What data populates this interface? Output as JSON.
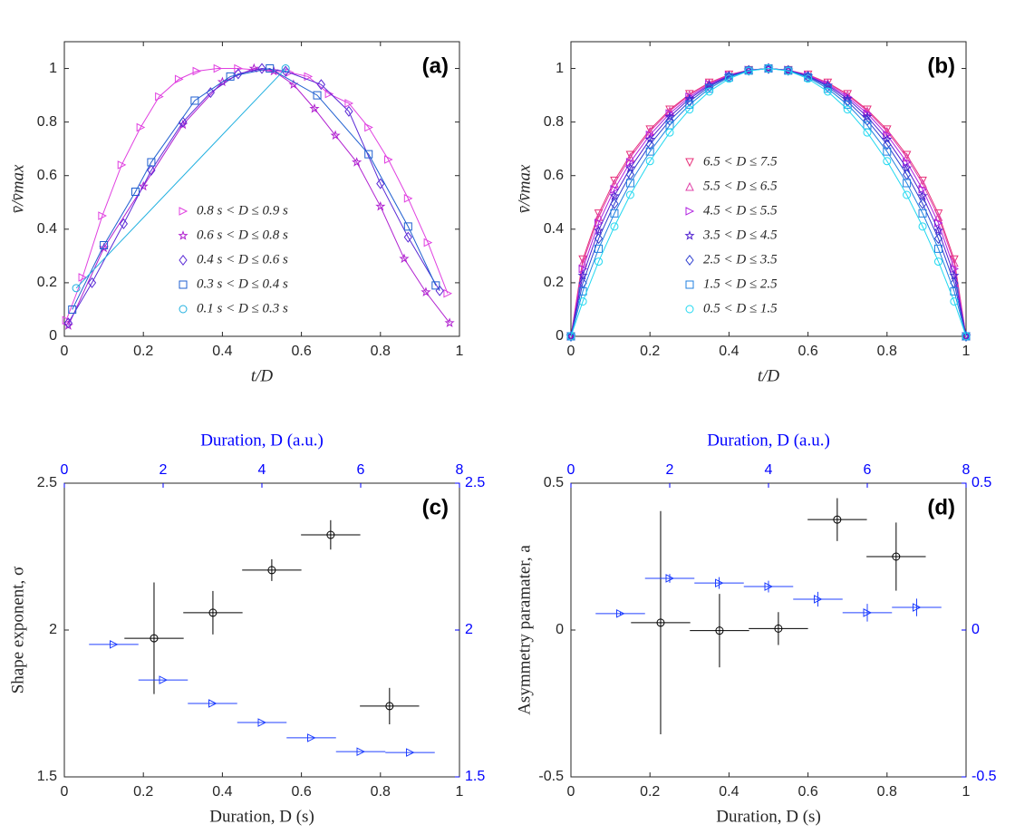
{
  "chart_data": [
    {
      "type": "scatter",
      "label": "(a)",
      "xlabel": "t/D",
      "ylabel": "v̄/v̄max",
      "lines": true,
      "legend": "south",
      "xlim": [
        0,
        1
      ],
      "xticks": [
        0,
        0.2,
        0.4,
        0.6,
        0.8,
        1
      ],
      "ylim": [
        0,
        1.1
      ],
      "yticks": [
        0,
        0.2,
        0.4,
        0.6,
        0.8,
        1
      ],
      "series": [
        {
          "name": "0.8 s < D ≤ 0.9 s",
          "color": "#e040e0",
          "marker": "triangle-right",
          "x": [
            0.005,
            0.046,
            0.096,
            0.145,
            0.193,
            0.24,
            0.29,
            0.335,
            0.388,
            0.44,
            0.57,
            0.617,
            0.67,
            0.72,
            0.77,
            0.82,
            0.87,
            0.92,
            0.97
          ],
          "values": [
            0.06,
            0.22,
            0.45,
            0.64,
            0.78,
            0.895,
            0.96,
            0.99,
            1.0,
            1.0,
            0.985,
            0.97,
            0.905,
            0.87,
            0.78,
            0.66,
            0.515,
            0.35,
            0.16
          ]
        },
        {
          "name": "0.6 s < D ≤ 0.8 s",
          "color": "#b020d0",
          "marker": "star",
          "x": [
            0.01,
            0.1,
            0.2,
            0.3,
            0.4,
            0.48,
            0.53,
            0.58,
            0.633,
            0.686,
            0.74,
            0.8,
            0.86,
            0.915,
            0.975
          ],
          "values": [
            0.04,
            0.33,
            0.56,
            0.79,
            0.95,
            1.0,
            0.99,
            0.94,
            0.85,
            0.75,
            0.65,
            0.485,
            0.29,
            0.165,
            0.05
          ]
        },
        {
          "name": "0.4 s < D ≤ 0.6 s",
          "color": "#5a2ad6",
          "marker": "diamond",
          "x": [
            0.01,
            0.07,
            0.15,
            0.22,
            0.3,
            0.37,
            0.44,
            0.5,
            0.56,
            0.65,
            0.72,
            0.8,
            0.87,
            0.95
          ],
          "values": [
            0.05,
            0.2,
            0.42,
            0.62,
            0.8,
            0.91,
            0.98,
            1.0,
            0.99,
            0.94,
            0.84,
            0.57,
            0.37,
            0.17
          ]
        },
        {
          "name": "0.3 s < D ≤ 0.4 s",
          "color": "#1f5fd0",
          "marker": "square",
          "x": [
            0.02,
            0.1,
            0.18,
            0.22,
            0.33,
            0.42,
            0.52,
            0.64,
            0.77,
            0.87,
            0.94
          ],
          "values": [
            0.1,
            0.34,
            0.54,
            0.65,
            0.88,
            0.97,
            1.0,
            0.9,
            0.68,
            0.41,
            0.19
          ]
        },
        {
          "name": "0.1 s < D ≤ 0.3 s",
          "color": "#20b0e0",
          "marker": "circle",
          "x": [
            0.03,
            0.56
          ],
          "values": [
            0.18,
            1.0
          ]
        }
      ]
    },
    {
      "type": "scatter",
      "label": "(b)",
      "xlabel": "t/D",
      "ylabel": "v̄/v̄max",
      "lines": true,
      "legend": "south",
      "xlim": [
        0,
        1
      ],
      "xticks": [
        0,
        0.2,
        0.4,
        0.6,
        0.8,
        1
      ],
      "ylim": [
        0,
        1.1
      ],
      "yticks": [
        0,
        0.2,
        0.4,
        0.6,
        0.8,
        1
      ],
      "x": [
        0,
        0.03,
        0.07,
        0.11,
        0.15,
        0.2,
        0.25,
        0.3,
        0.35,
        0.4,
        0.45,
        0.5,
        0.55,
        0.6,
        0.65,
        0.7,
        0.75,
        0.8,
        0.85,
        0.89,
        0.93,
        0.97,
        1
      ],
      "series": [
        {
          "name": "6.5 < D ≤ 7.5",
          "color": "#e8307a",
          "marker": "triangle-down",
          "values": [
            0,
            0.287,
            0.458,
            0.581,
            0.677,
            0.772,
            0.846,
            0.904,
            0.947,
            0.977,
            0.994,
            1,
            0.994,
            0.977,
            0.947,
            0.904,
            0.846,
            0.772,
            0.677,
            0.581,
            0.458,
            0.287,
            0
          ]
        },
        {
          "name": "5.5 < D ≤ 6.5",
          "color": "#e040a8",
          "marker": "triangle-up",
          "values": [
            0,
            0.275,
            0.446,
            0.57,
            0.668,
            0.765,
            0.841,
            0.901,
            0.945,
            0.976,
            0.994,
            1,
            0.994,
            0.976,
            0.945,
            0.901,
            0.841,
            0.765,
            0.668,
            0.57,
            0.446,
            0.275,
            0
          ]
        },
        {
          "name": "4.5 < D ≤ 5.5",
          "color": "#b020e0",
          "marker": "triangle-right",
          "values": [
            0,
            0.252,
            0.423,
            0.549,
            0.65,
            0.752,
            0.832,
            0.894,
            0.941,
            0.974,
            0.994,
            1,
            0.994,
            0.974,
            0.941,
            0.894,
            0.832,
            0.752,
            0.65,
            0.549,
            0.423,
            0.252,
            0
          ]
        },
        {
          "name": "3.5 < D ≤ 4.5",
          "color": "#5020d0",
          "marker": "star",
          "values": [
            0,
            0.227,
            0.395,
            0.524,
            0.628,
            0.735,
            0.82,
            0.887,
            0.937,
            0.972,
            0.993,
            1,
            0.993,
            0.972,
            0.937,
            0.887,
            0.82,
            0.735,
            0.628,
            0.524,
            0.395,
            0.227,
            0
          ]
        },
        {
          "name": "2.5 < D ≤ 3.5",
          "color": "#3040d0",
          "marker": "diamond",
          "values": [
            0,
            0.199,
            0.365,
            0.495,
            0.604,
            0.716,
            0.806,
            0.877,
            0.932,
            0.97,
            0.993,
            1,
            0.993,
            0.97,
            0.932,
            0.877,
            0.806,
            0.716,
            0.604,
            0.495,
            0.365,
            0.199,
            0
          ]
        },
        {
          "name": "1.5 < D ≤ 2.5",
          "color": "#2080e0",
          "marker": "square",
          "values": [
            0,
            0.168,
            0.327,
            0.459,
            0.572,
            0.69,
            0.788,
            0.865,
            0.925,
            0.967,
            0.992,
            1,
            0.992,
            0.967,
            0.925,
            0.865,
            0.788,
            0.69,
            0.572,
            0.459,
            0.327,
            0.168,
            0
          ]
        },
        {
          "name": "0.5 < D ≤ 1.5",
          "color": "#20d8f0",
          "marker": "circle",
          "values": [
            0,
            0.13,
            0.279,
            0.41,
            0.528,
            0.654,
            0.761,
            0.847,
            0.914,
            0.962,
            0.991,
            1,
            0.991,
            0.962,
            0.914,
            0.847,
            0.761,
            0.654,
            0.528,
            0.41,
            0.279,
            0.13,
            0
          ]
        }
      ]
    },
    {
      "type": "scatter",
      "label": "(c)",
      "xlabel": "Duration, D (s)",
      "ylabel": "Shape exponent, σ",
      "x2label": "Duration, D (a.u.)",
      "axis2_color": "#0000ff",
      "xlim": [
        0,
        1
      ],
      "xticks": [
        0,
        0.2,
        0.4,
        0.6,
        0.8,
        1
      ],
      "ylim": [
        1.5,
        2.5
      ],
      "yticks": [
        1.5,
        2,
        2.5
      ],
      "x2lim": [
        0,
        8
      ],
      "x2ticks": [
        0,
        2,
        4,
        6,
        8
      ],
      "y2lim": [
        1.5,
        2.5
      ],
      "y2ticks": [
        1.5,
        2,
        2.5
      ],
      "series": [
        {
          "color": "#000000",
          "marker": "circle",
          "x": [
            0.227,
            0.376,
            0.525,
            0.674,
            0.823
          ],
          "values": [
            1.972,
            2.059,
            2.204,
            2.324,
            1.741
          ],
          "xerr": [
            0.075,
            0.075,
            0.075,
            0.075,
            0.075
          ],
          "yerr": [
            0.19,
            0.074,
            0.037,
            0.05,
            0.062
          ]
        },
        {
          "color": "#2040ff",
          "marker": "triangle-right",
          "axis": "y2",
          "xaxis": "x2",
          "x": [
            1,
            2,
            3,
            4,
            5,
            6,
            7
          ],
          "values": [
            1.951,
            1.83,
            1.75,
            1.685,
            1.633,
            1.586,
            1.583
          ],
          "xerr": [
            0.5,
            0.5,
            0.5,
            0.5,
            0.5,
            0.5,
            0.5
          ]
        }
      ]
    },
    {
      "type": "scatter",
      "label": "(d)",
      "xlabel": "Duration, D (s)",
      "ylabel": "Asymmetry paramater, a",
      "x2label": "Duration, D (a.u.)",
      "axis2_color": "#0000ff",
      "xlim": [
        0,
        1
      ],
      "xticks": [
        0,
        0.2,
        0.4,
        0.6,
        0.8,
        1
      ],
      "ylim": [
        -0.5,
        0.5
      ],
      "yticks": [
        -0.5,
        0,
        0.5
      ],
      "x2lim": [
        0,
        8
      ],
      "x2ticks": [
        0,
        2,
        4,
        6,
        8
      ],
      "y2lim": [
        -0.5,
        0.5
      ],
      "y2ticks": [
        -0.5,
        0,
        0.5
      ],
      "series": [
        {
          "color": "#000000",
          "marker": "circle",
          "x": [
            0.227,
            0.376,
            0.525,
            0.674,
            0.823
          ],
          "values": [
            0.025,
            -0.002,
            0.005,
            0.376,
            0.25
          ],
          "xerr": [
            0.075,
            0.075,
            0.075,
            0.075,
            0.075
          ],
          "yerr": [
            0.38,
            0.125,
            0.056,
            0.073,
            0.116
          ]
        },
        {
          "color": "#2040ff",
          "marker": "triangle-right",
          "axis": "y2",
          "xaxis": "x2",
          "x": [
            1,
            2,
            3,
            4,
            5,
            6,
            7
          ],
          "values": [
            0.056,
            0.176,
            0.16,
            0.148,
            0.105,
            0.059,
            0.077
          ],
          "xerr": [
            0.5,
            0.5,
            0.5,
            0.5,
            0.5,
            0.5,
            0.5
          ],
          "yerr": [
            0.005,
            0.015,
            0.02,
            0.02,
            0.025,
            0.03,
            0.03
          ]
        }
      ]
    }
  ]
}
